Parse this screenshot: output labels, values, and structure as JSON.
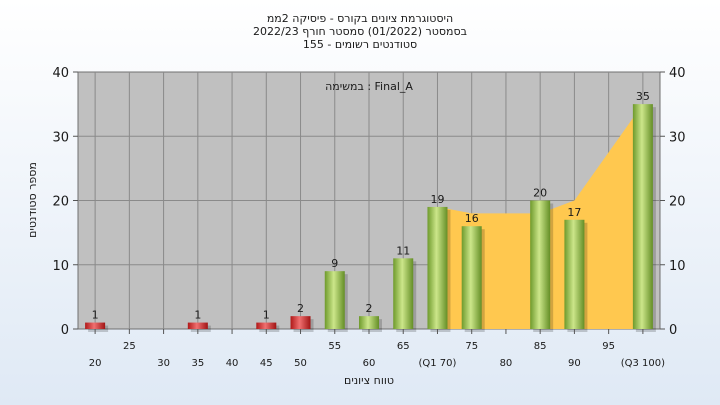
{
  "chart_data": {
    "type": "bar",
    "title_lines": [
      "היסטוגרמת ציונים בקורס - פיסיקה 2ממ",
      "בסמסטר  (01/2022)  סמסטר חורף 2022/23",
      "155 - סטודנטים רשומים"
    ],
    "annotation": "במשימה : Final_A",
    "xlabel": "טווח ציונים",
    "ylabel": "מספר סטודנטים",
    "ylim": [
      0,
      40
    ],
    "yticks": [
      0,
      10,
      20,
      30,
      40
    ],
    "categories": [
      20,
      25,
      30,
      35,
      40,
      45,
      50,
      55,
      60,
      65,
      70,
      75,
      80,
      85,
      90,
      95,
      100
    ],
    "bars": [
      {
        "x": 20,
        "value": 1,
        "label": "1",
        "color": "red"
      },
      {
        "x": 35,
        "value": 1,
        "label": "1",
        "color": "red"
      },
      {
        "x": 45,
        "value": 1,
        "label": "1",
        "color": "red"
      },
      {
        "x": 50,
        "value": 2,
        "label": "2",
        "color": "red"
      },
      {
        "x": 55,
        "value": 9,
        "label": "9",
        "color": "green"
      },
      {
        "x": 60,
        "value": 2,
        "label": "2",
        "color": "green"
      },
      {
        "x": 65,
        "value": 11,
        "label": "11",
        "color": "green"
      },
      {
        "x": 70,
        "value": 19,
        "label": "19",
        "color": "green"
      },
      {
        "x": 75,
        "value": 16,
        "label": "16",
        "color": "green"
      },
      {
        "x": 85,
        "value": 20,
        "label": "20",
        "color": "green"
      },
      {
        "x": 90,
        "value": 17,
        "label": "17",
        "color": "green"
      },
      {
        "x": 100,
        "value": 35,
        "label": "35",
        "color": "green"
      }
    ],
    "area": [
      {
        "x": 70,
        "y": 19
      },
      {
        "x": 75,
        "y": 18
      },
      {
        "x": 85,
        "y": 18
      },
      {
        "x": 90,
        "y": 20
      },
      {
        "x": 100,
        "y": 35
      }
    ],
    "xtick_labels": [
      {
        "x": 20,
        "label": "20",
        "row": 2
      },
      {
        "x": 25,
        "label": "25",
        "row": 1
      },
      {
        "x": 30,
        "label": "30",
        "row": 2
      },
      {
        "x": 35,
        "label": "35",
        "row": 2
      },
      {
        "x": 40,
        "label": "40",
        "row": 2
      },
      {
        "x": 45,
        "label": "45",
        "row": 2
      },
      {
        "x": 50,
        "label": "50",
        "row": 2
      },
      {
        "x": 55,
        "label": "55",
        "row": 1
      },
      {
        "x": 60,
        "label": "60",
        "row": 2
      },
      {
        "x": 65,
        "label": "65",
        "row": 1
      },
      {
        "x": 70,
        "label": "(Q1 70)",
        "row": 2
      },
      {
        "x": 75,
        "label": "75",
        "row": 1
      },
      {
        "x": 80,
        "label": "80",
        "row": 2
      },
      {
        "x": 85,
        "label": "85",
        "row": 1
      },
      {
        "x": 90,
        "label": "90",
        "row": 2
      },
      {
        "x": 95,
        "label": "95",
        "row": 1
      },
      {
        "x": 100,
        "label": "(Q3 100)",
        "row": 2
      }
    ],
    "colors": {
      "plot_bg": "#c0c0c0",
      "area": "#ffc84f",
      "bar_red_light": "#f07070",
      "bar_red_dark": "#b01818",
      "bar_green_light": "#cce68a",
      "bar_green_dark": "#6e9a2c"
    }
  }
}
